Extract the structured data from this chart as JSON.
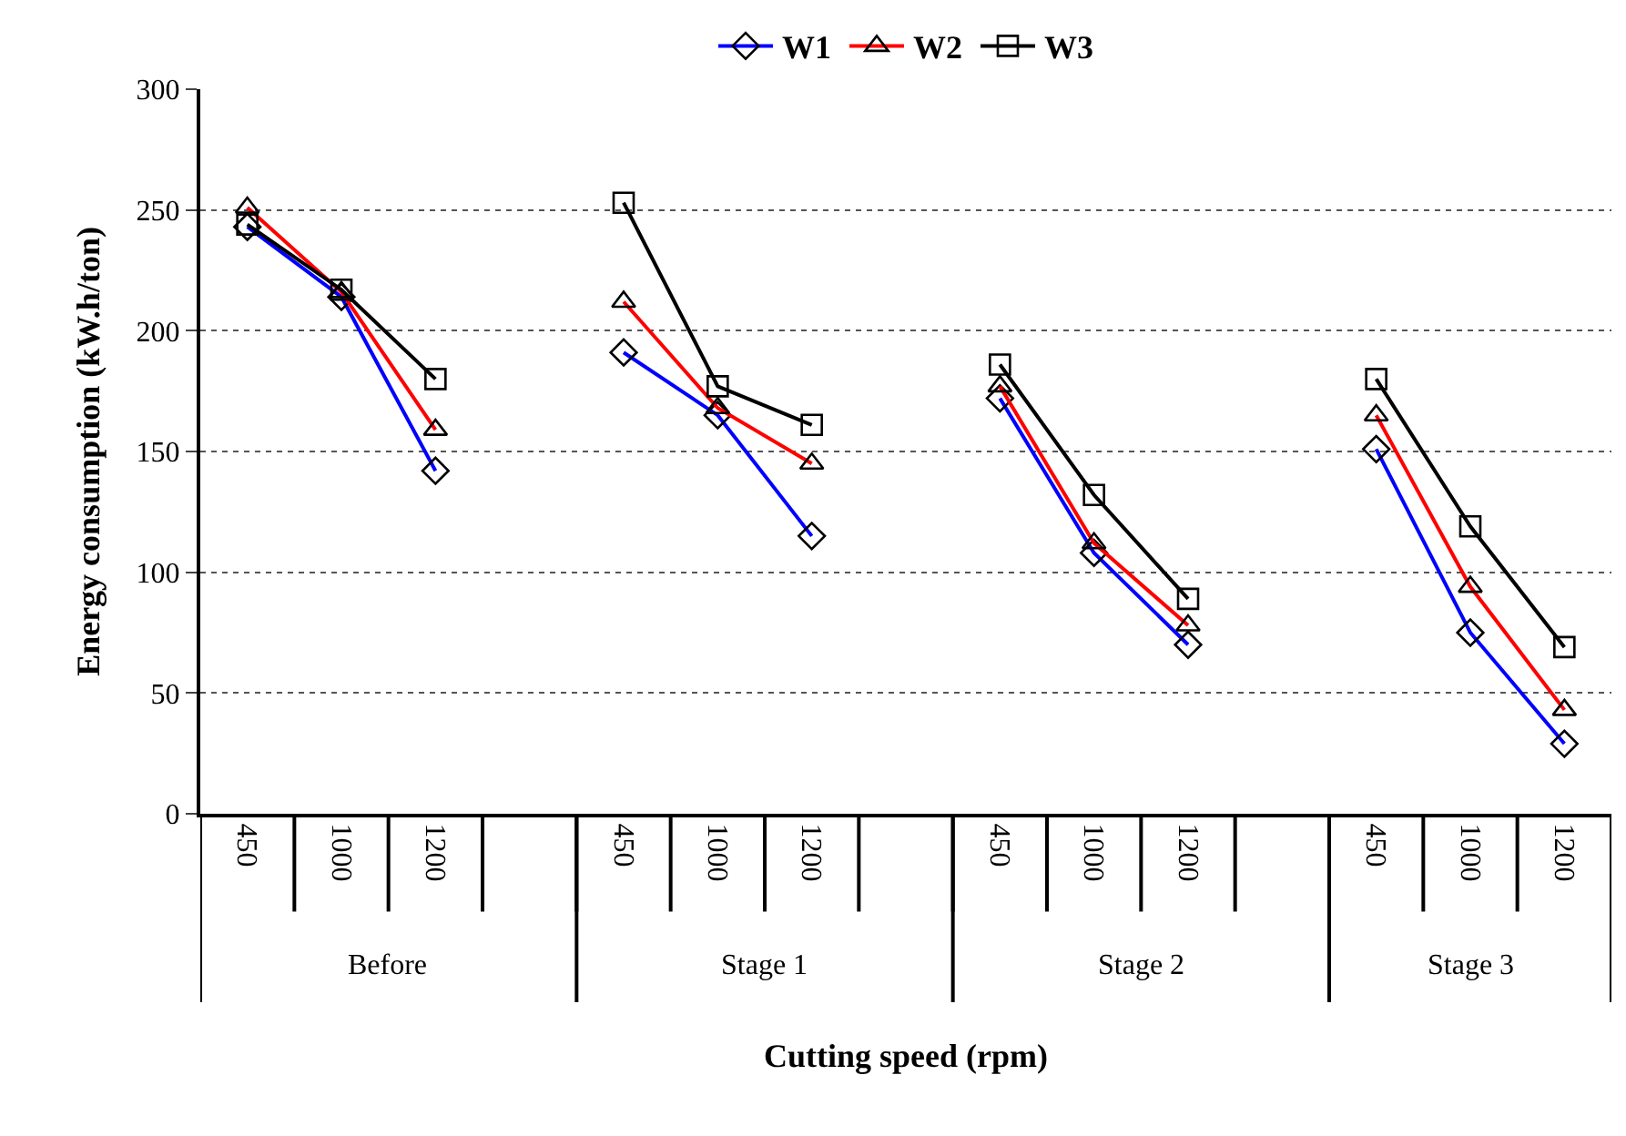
{
  "chart_data": {
    "type": "line",
    "xlabel": "Cutting speed (rpm)",
    "ylabel": "Energy consumption (kW.h/ton)",
    "categories": [
      "450",
      "1000",
      "1200",
      null,
      "450",
      "1000",
      "1200",
      null,
      "450",
      "1000",
      "1200",
      null,
      "450",
      "1000",
      "1200"
    ],
    "annotations": [
      "Before",
      "Stage 1",
      "Stage 2",
      "Stage 3"
    ],
    "series": [
      {
        "name": "W1",
        "color": "#0000ff",
        "marker": "diamond",
        "values": [
          243,
          214,
          142,
          null,
          191,
          165,
          115,
          null,
          172,
          108,
          70,
          null,
          151,
          75,
          29
        ]
      },
      {
        "name": "W2",
        "color": "#ff0000",
        "marker": "triangle",
        "values": [
          251,
          216,
          159,
          null,
          212,
          168,
          145,
          null,
          177,
          112,
          78,
          null,
          165,
          94,
          43
        ]
      },
      {
        "name": "W3",
        "color": "#000000",
        "marker": "square",
        "values": [
          244,
          217,
          180,
          null,
          253,
          177,
          161,
          null,
          186,
          132,
          89,
          null,
          180,
          119,
          69
        ]
      }
    ],
    "ylim": [
      0,
      300
    ],
    "yticks": [
      0,
      50,
      100,
      150,
      200,
      250,
      300
    ],
    "grid": "y",
    "legend": "top",
    "line_style": "solid"
  }
}
